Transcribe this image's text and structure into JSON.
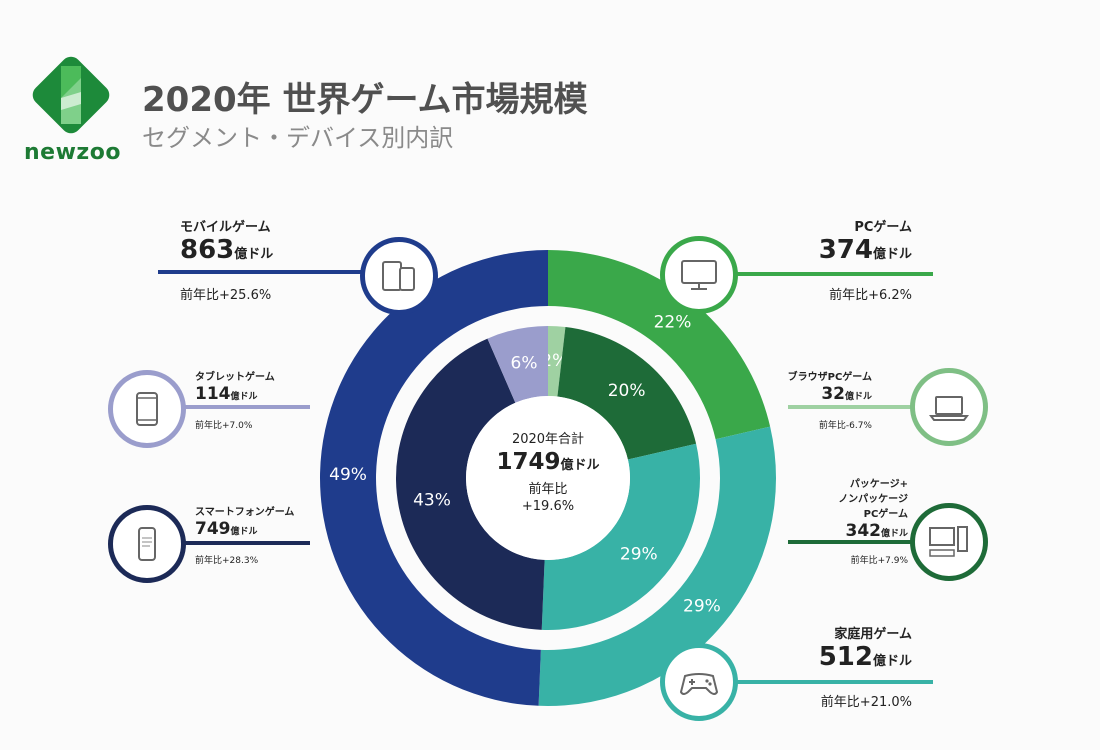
{
  "header": {
    "logo_text": "newzoo",
    "title": "2020年 世界ゲーム市場規模",
    "subtitle": "セグメント・デバイス別内訳"
  },
  "center": {
    "label": "2020年合計",
    "value": "1749",
    "unit": "億ドル",
    "yoy_label": "前年比",
    "yoy": "+19.6%"
  },
  "callouts": {
    "mobile": {
      "name": "モバイルゲーム",
      "value": "863",
      "unit": "億ドル",
      "yoy": "前年比+25.6%",
      "icon": "mobile-devices-icon"
    },
    "tablet": {
      "name": "タブレットゲーム",
      "value": "114",
      "unit": "億ドル",
      "yoy": "前年比+7.0%",
      "icon": "tablet-icon"
    },
    "smartphone": {
      "name": "スマートフォンゲーム",
      "value": "749",
      "unit": "億ドル",
      "yoy": "前年比+28.3%",
      "icon": "smartphone-icon"
    },
    "pc": {
      "name": "PCゲーム",
      "value": "374",
      "unit": "億ドル",
      "yoy": "前年比+6.2%",
      "icon": "monitor-icon"
    },
    "browser_pc": {
      "name": "ブラウザPCゲーム",
      "value": "32",
      "unit": "億ドル",
      "yoy": "前年比-6.7%",
      "icon": "laptop-icon"
    },
    "package_pc": {
      "name1": "パッケージ+",
      "name2": "ノンパッケージ",
      "name3": "PCゲーム",
      "value": "342",
      "unit": "億ドル",
      "yoy": "前年比+7.9%",
      "icon": "desktop-pc-icon"
    },
    "console": {
      "name": "家庭用ゲーム",
      "value": "512",
      "unit": "億ドル",
      "yoy": "前年比+21.0%",
      "icon": "gamepad-icon"
    }
  },
  "chart_data": {
    "type": "pie",
    "total": 1749,
    "unit": "億ドル",
    "outer_ring": [
      {
        "name": "PCゲーム",
        "value": 374,
        "percent": 22,
        "label": "22%",
        "color": "#3aa84a"
      },
      {
        "name": "家庭用ゲーム",
        "value": 512,
        "percent": 29,
        "label": "29%",
        "color": "#38b2a6"
      },
      {
        "name": "モバイルゲーム",
        "value": 863,
        "percent": 49,
        "label": "49%",
        "color": "#1f3c8c"
      }
    ],
    "inner_ring": [
      {
        "name": "ブラウザPCゲーム",
        "value": 32,
        "percent": 2,
        "label": "2%",
        "color": "#9fd1a2"
      },
      {
        "name": "パッケージ+ノンパッケージPCゲーム",
        "value": 342,
        "percent": 20,
        "label": "20%",
        "color": "#1e6b38"
      },
      {
        "name": "家庭用ゲーム",
        "value": 512,
        "percent": 29,
        "label": "29%",
        "color": "#38b2a6"
      },
      {
        "name": "スマートフォンゲーム",
        "value": 749,
        "percent": 43,
        "label": "43%",
        "color": "#1c2a57"
      },
      {
        "name": "タブレットゲーム",
        "value": 114,
        "percent": 6,
        "label": "6%",
        "color": "#9a9dcc"
      }
    ]
  }
}
